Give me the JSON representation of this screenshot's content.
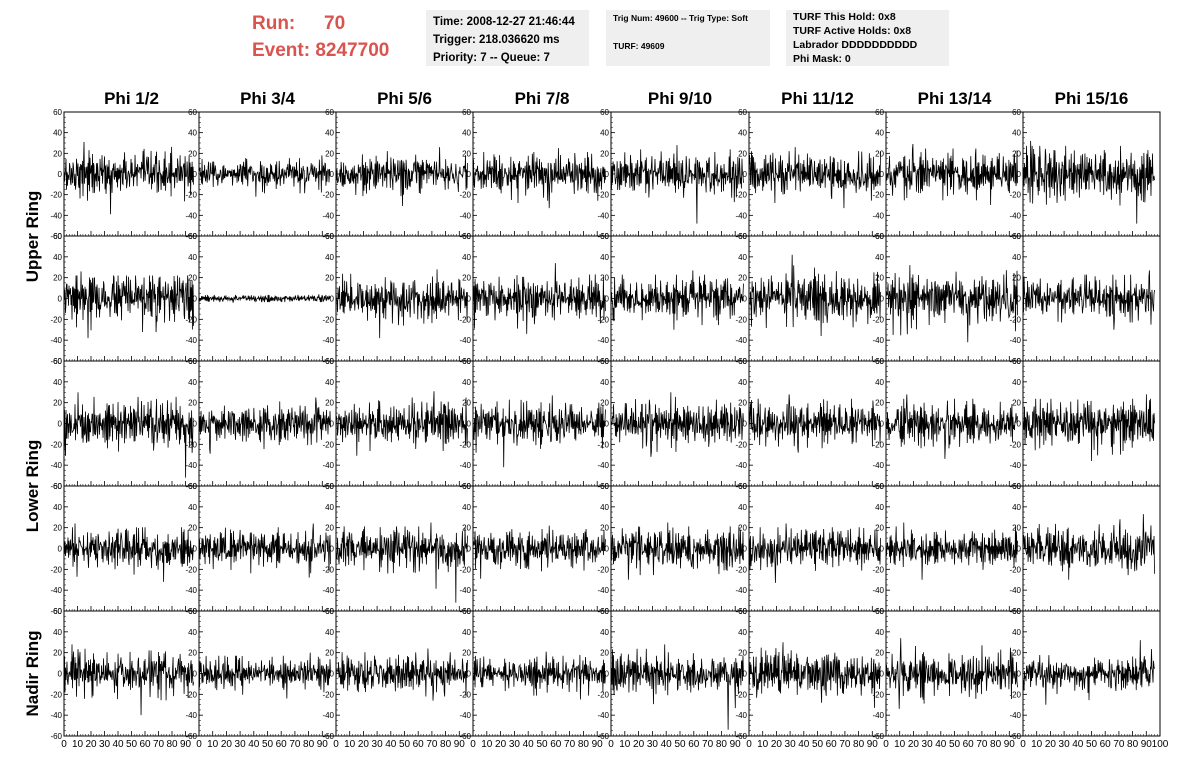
{
  "header": {
    "run_label": "Run:",
    "run_value": "70",
    "event_label": "Event:",
    "event_value": "8247700",
    "time_line": "Time: 2008-12-27 21:46:44",
    "trigger_line": "Trigger: 218.036620 ms",
    "priority_line": "Priority: 7 -- Queue: 7",
    "trig_num_line": "Trig Num: 49600 -- Trig Type: Soft",
    "turf_line": "TURF: 49609",
    "turf_hold_line": "TURF This Hold: 0x8",
    "turf_active_line": "TURF Active Holds: 0x8",
    "labrador_line": "Labrador DDDDDDDDDD",
    "phi_mask_line": "Phi Mask: 0"
  },
  "colors": {
    "run_text": "#d9534f",
    "info_box_bg": "#efefef",
    "trace": "#000000",
    "frame": "#000000"
  },
  "chart_data": {
    "type": "line",
    "columns": [
      "Phi 1/2",
      "Phi 3/4",
      "Phi 5/6",
      "Phi 7/8",
      "Phi 9/10",
      "Phi 11/12",
      "Phi 13/14",
      "Phi 15/16"
    ],
    "ring_labels": [
      "Upper Ring",
      "Lower Ring",
      "Nadir Ring"
    ],
    "rows": 5,
    "xlim": [
      0,
      100
    ],
    "ylim": [
      -60,
      60
    ],
    "x_ticks": [
      0,
      10,
      20,
      30,
      40,
      50,
      60,
      70,
      80,
      90
    ],
    "x_ticks_last": [
      0,
      10,
      20,
      30,
      40,
      50,
      60,
      70,
      80,
      90,
      100
    ],
    "y_ticks": [
      -60,
      -40,
      -20,
      0,
      20,
      40,
      60
    ],
    "samples_per_trace": 260,
    "trace_x_end": 96,
    "panels": [
      [
        {
          "rms": 11,
          "min": -39,
          "max": 31
        },
        {
          "rms": 8,
          "min": -22,
          "max": 18
        },
        {
          "rms": 10,
          "min": -31,
          "max": 26
        },
        {
          "rms": 11,
          "min": -33,
          "max": 25
        },
        {
          "rms": 12,
          "min": -48,
          "max": 28
        },
        {
          "rms": 11,
          "min": -33,
          "max": 26
        },
        {
          "rms": 12,
          "min": -30,
          "max": 29
        },
        {
          "rms": 14,
          "min": -48,
          "max": 32
        }
      ],
      [
        {
          "rms": 13,
          "min": -38,
          "max": 26
        },
        {
          "rms": 2,
          "min": -4,
          "max": 4
        },
        {
          "rms": 12,
          "min": -38,
          "max": 28
        },
        {
          "rms": 12,
          "min": -34,
          "max": 34
        },
        {
          "rms": 11,
          "min": -30,
          "max": 27
        },
        {
          "rms": 13,
          "min": -36,
          "max": 42
        },
        {
          "rms": 13,
          "min": -42,
          "max": 32
        },
        {
          "rms": 12,
          "min": -30,
          "max": 27
        }
      ],
      [
        {
          "rms": 13,
          "min": -52,
          "max": 30
        },
        {
          "rms": 10,
          "min": -29,
          "max": 25
        },
        {
          "rms": 12,
          "min": -31,
          "max": 31
        },
        {
          "rms": 12,
          "min": -42,
          "max": 27
        },
        {
          "rms": 12,
          "min": -32,
          "max": 30
        },
        {
          "rms": 11,
          "min": -28,
          "max": 28
        },
        {
          "rms": 11,
          "min": -34,
          "max": 28
        },
        {
          "rms": 12,
          "min": -36,
          "max": 28
        }
      ],
      [
        {
          "rms": 11,
          "min": -32,
          "max": 24
        },
        {
          "rms": 10,
          "min": -28,
          "max": 24
        },
        {
          "rms": 12,
          "min": -52,
          "max": 25
        },
        {
          "rms": 10,
          "min": -29,
          "max": 22
        },
        {
          "rms": 11,
          "min": -30,
          "max": 25
        },
        {
          "rms": 10,
          "min": -33,
          "max": 24
        },
        {
          "rms": 10,
          "min": -30,
          "max": 25
        },
        {
          "rms": 13,
          "min": -30,
          "max": 33
        }
      ],
      [
        {
          "rms": 12,
          "min": -40,
          "max": 28
        },
        {
          "rms": 8,
          "min": -24,
          "max": 20
        },
        {
          "rms": 10,
          "min": -26,
          "max": 24
        },
        {
          "rms": 9,
          "min": -25,
          "max": 21
        },
        {
          "rms": 11,
          "min": -54,
          "max": 28
        },
        {
          "rms": 12,
          "min": -33,
          "max": 30
        },
        {
          "rms": 11,
          "min": -34,
          "max": 34
        },
        {
          "rms": 10,
          "min": -30,
          "max": 32
        }
      ]
    ]
  }
}
